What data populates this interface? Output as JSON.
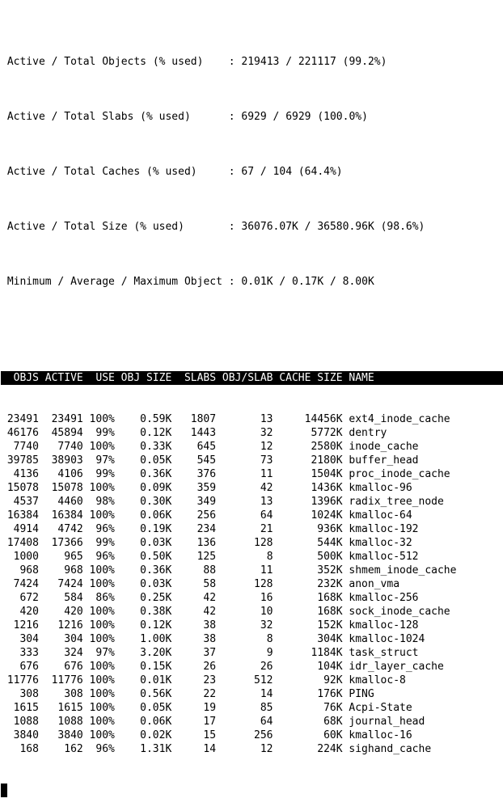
{
  "terminal": {
    "app": "slabtop",
    "colors": {
      "background": "#ffffff",
      "text": "#000000",
      "header_bg": "#000000",
      "header_fg": "#ffffff"
    },
    "summary": [
      {
        "label": "Active / Total Objects (% used)",
        "value": "219413 / 221117 (99.2%)"
      },
      {
        "label": "Active / Total Slabs (% used)",
        "value": "6929 / 6929 (100.0%)"
      },
      {
        "label": "Active / Total Caches (% used)",
        "value": "67 / 104 (64.4%)"
      },
      {
        "label": "Active / Total Size (% used)",
        "value": "36076.07K / 36580.96K (98.6%)"
      },
      {
        "label": "Minimum / Average / Maximum Object",
        "value": "0.01K / 0.17K / 8.00K"
      }
    ],
    "table": {
      "headers": [
        "OBJS",
        "ACTIVE",
        "USE",
        "OBJ SIZE",
        "SLABS",
        "OBJ/SLAB",
        "CACHE SIZE",
        "NAME"
      ],
      "rows": [
        [
          "23491",
          "23491",
          "100%",
          "0.59K",
          "1807",
          "13",
          "14456K",
          "ext4_inode_cache"
        ],
        [
          "46176",
          "45894",
          "99%",
          "0.12K",
          "1443",
          "32",
          "5772K",
          "dentry"
        ],
        [
          "7740",
          "7740",
          "100%",
          "0.33K",
          "645",
          "12",
          "2580K",
          "inode_cache"
        ],
        [
          "39785",
          "38903",
          "97%",
          "0.05K",
          "545",
          "73",
          "2180K",
          "buffer_head"
        ],
        [
          "4136",
          "4106",
          "99%",
          "0.36K",
          "376",
          "11",
          "1504K",
          "proc_inode_cache"
        ],
        [
          "15078",
          "15078",
          "100%",
          "0.09K",
          "359",
          "42",
          "1436K",
          "kmalloc-96"
        ],
        [
          "4537",
          "4460",
          "98%",
          "0.30K",
          "349",
          "13",
          "1396K",
          "radix_tree_node"
        ],
        [
          "16384",
          "16384",
          "100%",
          "0.06K",
          "256",
          "64",
          "1024K",
          "kmalloc-64"
        ],
        [
          "4914",
          "4742",
          "96%",
          "0.19K",
          "234",
          "21",
          "936K",
          "kmalloc-192"
        ],
        [
          "17408",
          "17366",
          "99%",
          "0.03K",
          "136",
          "128",
          "544K",
          "kmalloc-32"
        ],
        [
          "1000",
          "965",
          "96%",
          "0.50K",
          "125",
          "8",
          "500K",
          "kmalloc-512"
        ],
        [
          "968",
          "968",
          "100%",
          "0.36K",
          "88",
          "11",
          "352K",
          "shmem_inode_cache"
        ],
        [
          "7424",
          "7424",
          "100%",
          "0.03K",
          "58",
          "128",
          "232K",
          "anon_vma"
        ],
        [
          "672",
          "584",
          "86%",
          "0.25K",
          "42",
          "16",
          "168K",
          "kmalloc-256"
        ],
        [
          "420",
          "420",
          "100%",
          "0.38K",
          "42",
          "10",
          "168K",
          "sock_inode_cache"
        ],
        [
          "1216",
          "1216",
          "100%",
          "0.12K",
          "38",
          "32",
          "152K",
          "kmalloc-128"
        ],
        [
          "304",
          "304",
          "100%",
          "1.00K",
          "38",
          "8",
          "304K",
          "kmalloc-1024"
        ],
        [
          "333",
          "324",
          "97%",
          "3.20K",
          "37",
          "9",
          "1184K",
          "task_struct"
        ],
        [
          "676",
          "676",
          "100%",
          "0.15K",
          "26",
          "26",
          "104K",
          "idr_layer_cache"
        ],
        [
          "11776",
          "11776",
          "100%",
          "0.01K",
          "23",
          "512",
          "92K",
          "kmalloc-8"
        ],
        [
          "308",
          "308",
          "100%",
          "0.56K",
          "22",
          "14",
          "176K",
          "PING"
        ],
        [
          "1615",
          "1615",
          "100%",
          "0.05K",
          "19",
          "85",
          "76K",
          "Acpi-State"
        ],
        [
          "1088",
          "1088",
          "100%",
          "0.06K",
          "17",
          "64",
          "68K",
          "journal_head"
        ],
        [
          "3840",
          "3840",
          "100%",
          "0.02K",
          "15",
          "256",
          "60K",
          "kmalloc-16"
        ],
        [
          "168",
          "162",
          "96%",
          "1.31K",
          "14",
          "12",
          "224K",
          "sighand_cache"
        ]
      ]
    }
  }
}
